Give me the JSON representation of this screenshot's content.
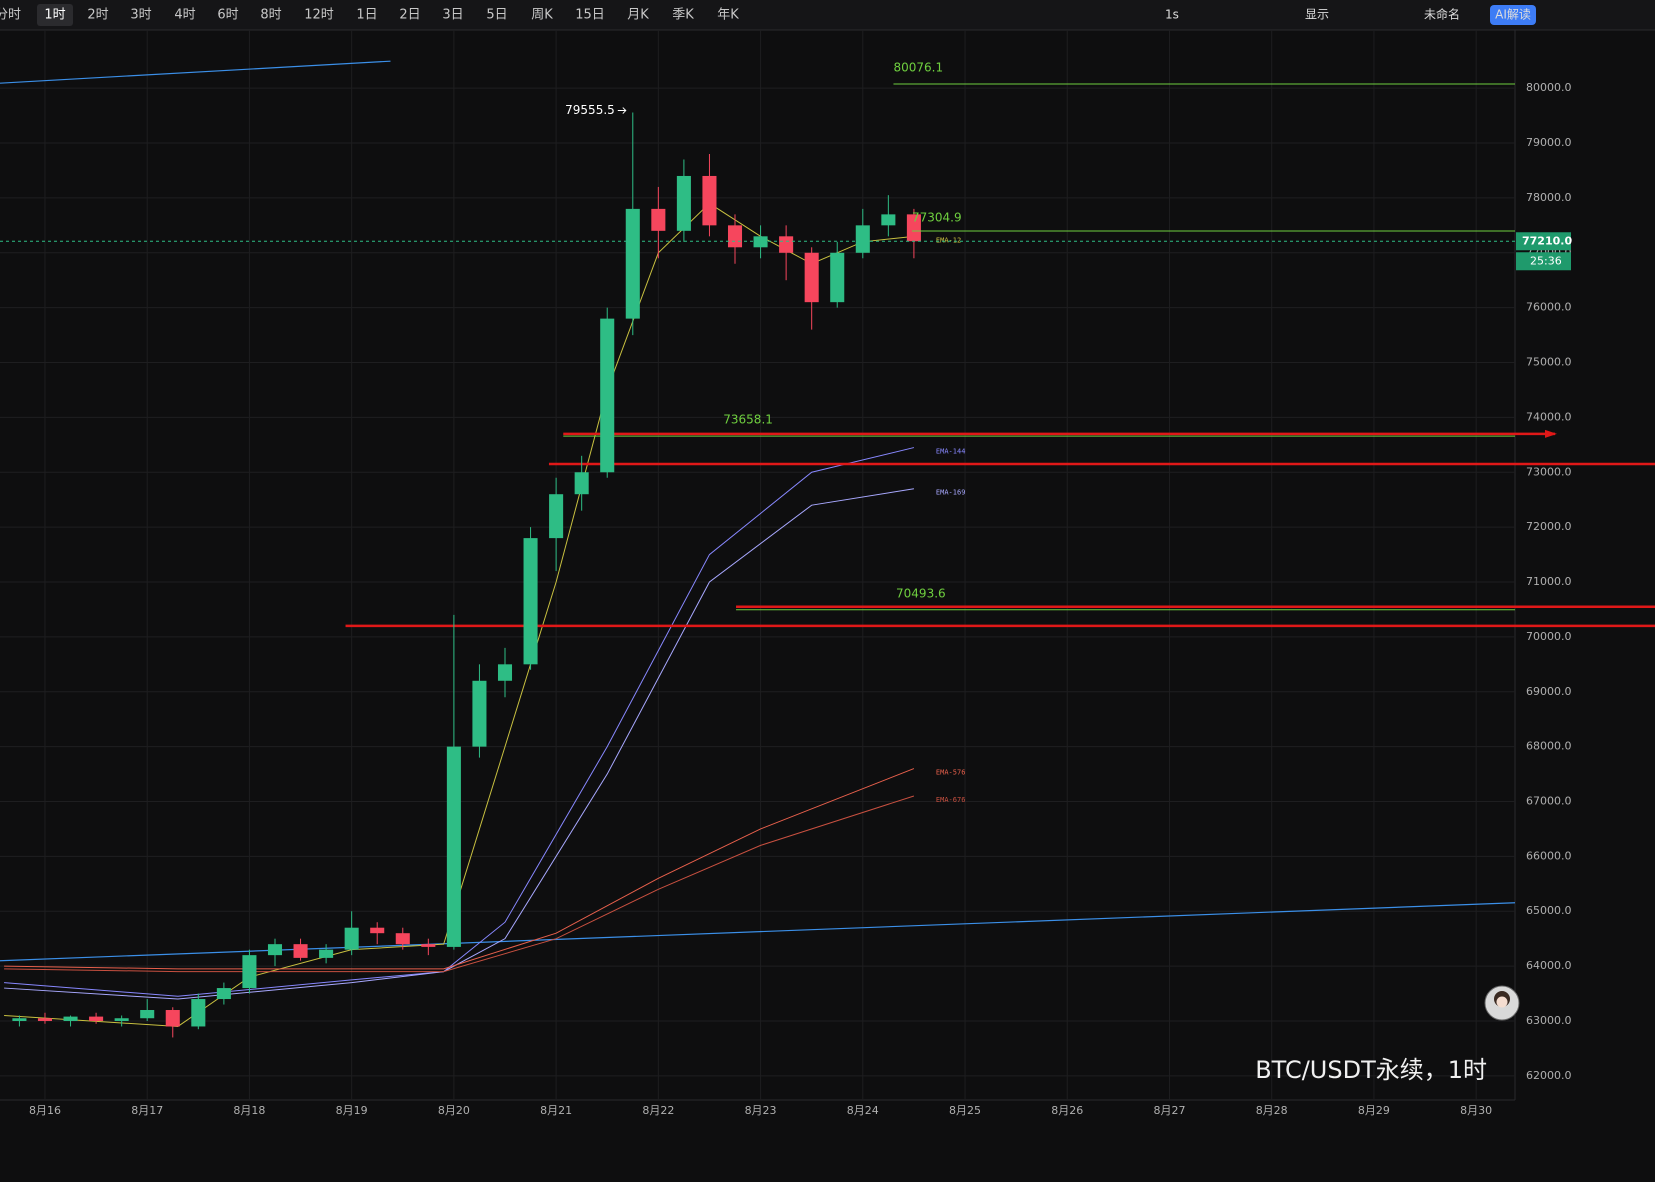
{
  "toolbar": {
    "intervals": [
      "分时",
      "1时",
      "2时",
      "3时",
      "4时",
      "6时",
      "8时",
      "12时",
      "1日",
      "2日",
      "3日",
      "5日",
      "周K",
      "15日",
      "月K",
      "季K",
      "年K"
    ],
    "active": 1,
    "tools": [
      "1s",
      "显示",
      "未命名",
      "AI解读"
    ]
  },
  "watermark": "BTC/USDT永续，1时",
  "chart_data": {
    "type": "candlestick",
    "xlim": [
      15.56,
      30.38
    ],
    "xticks": [
      {
        "value": 16,
        "label": "8月16"
      },
      {
        "value": 17,
        "label": "8月17"
      },
      {
        "value": 18,
        "label": "8月18"
      },
      {
        "value": 19,
        "label": "8月19"
      },
      {
        "value": 20,
        "label": "8月20"
      },
      {
        "value": 21,
        "label": "8月21"
      },
      {
        "value": 22,
        "label": "8月22"
      },
      {
        "value": 23,
        "label": "8月23"
      },
      {
        "value": 24,
        "label": "8月24"
      },
      {
        "value": 25,
        "label": "8月25"
      },
      {
        "value": 26,
        "label": "8月26"
      },
      {
        "value": 27,
        "label": "8月27"
      },
      {
        "value": 28,
        "label": "8月28"
      },
      {
        "value": 29,
        "label": "8月29"
      },
      {
        "value": 30,
        "label": "8月30"
      }
    ],
    "ylim": [
      61560,
      81060
    ],
    "yticks": [
      {
        "value": 62000,
        "label": "62000.0"
      },
      {
        "value": 63000,
        "label": "63000.0"
      },
      {
        "value": 64000,
        "label": "64000.0"
      },
      {
        "value": 65000,
        "label": "65000.0"
      },
      {
        "value": 66000,
        "label": "66000.0"
      },
      {
        "value": 67000,
        "label": "67000.0"
      },
      {
        "value": 68000,
        "label": "68000.0"
      },
      {
        "value": 69000,
        "label": "69000.0"
      },
      {
        "value": 70000,
        "label": "70000.0"
      },
      {
        "value": 71000,
        "label": "71000.0"
      },
      {
        "value": 72000,
        "label": "72000.0"
      },
      {
        "value": 73000,
        "label": "73000.0"
      },
      {
        "value": 74000,
        "label": "74000.0"
      },
      {
        "value": 75000,
        "label": "75000.0"
      },
      {
        "value": 76000,
        "label": "76000.0"
      },
      {
        "value": 77000,
        "label": "77000.0"
      },
      {
        "value": 78000,
        "label": "78000.0"
      },
      {
        "value": 79000,
        "label": "79000.0"
      },
      {
        "value": 80000,
        "label": "80000.0"
      }
    ],
    "grid": true,
    "up_color": "#2ebd85",
    "down_color": "#f6465d",
    "candles": {
      "x": [
        15.75,
        16,
        16.25,
        16.5,
        16.75,
        17,
        17.25,
        17.5,
        17.75,
        18,
        18.25,
        18.5,
        18.75,
        19,
        19.25,
        19.5,
        19.75,
        20,
        20.25,
        20.5,
        20.75,
        21,
        21.25,
        21.5,
        21.75,
        22,
        22.25,
        22.5,
        22.75,
        23,
        23.25,
        23.5,
        23.75,
        24,
        24.25,
        24.5
      ],
      "open": [
        63000,
        63050,
        63000,
        63080,
        63000,
        63050,
        63200,
        62900,
        63400,
        63600,
        64200,
        64400,
        64150,
        64300,
        64700,
        64600,
        64400,
        64350,
        68000,
        69200,
        69500,
        71800,
        72600,
        73000,
        75800,
        77800,
        77400,
        78400,
        77500,
        77100,
        77300,
        77000,
        76100,
        77000,
        77500,
        77700
      ],
      "high": [
        63100,
        63150,
        63100,
        63150,
        63100,
        63400,
        63250,
        63500,
        63700,
        64300,
        64500,
        64500,
        64400,
        65000,
        64800,
        64700,
        64500,
        70400,
        69500,
        69800,
        72000,
        72900,
        73300,
        76000,
        79555.5,
        78200,
        78700,
        78800,
        77700,
        77500,
        77500,
        77100,
        77200,
        77800,
        78050,
        77800
      ],
      "low": [
        62900,
        62950,
        62900,
        62950,
        62900,
        63000,
        62700,
        62850,
        63300,
        63500,
        64000,
        64100,
        64050,
        64200,
        64400,
        64300,
        64200,
        64300,
        67800,
        68900,
        69400,
        71200,
        72300,
        72900,
        75500,
        76900,
        77200,
        77300,
        76800,
        76900,
        76500,
        75600,
        76000,
        76900,
        77300,
        76900
      ],
      "close": [
        63050,
        63000,
        63080,
        63000,
        63050,
        63200,
        62900,
        63400,
        63600,
        64200,
        64400,
        64150,
        64300,
        64700,
        64600,
        64400,
        64350,
        68000,
        69200,
        69500,
        71800,
        72600,
        73000,
        75800,
        77800,
        77400,
        78400,
        77500,
        77100,
        77300,
        77000,
        76100,
        77000,
        77500,
        77700,
        77210
      ]
    },
    "emas": [
      {
        "name": "EMA-12",
        "color": "#c8c040",
        "x": [
          15.6,
          17.3,
          18,
          19,
          19.9,
          20.5,
          21,
          21.5,
          22,
          22.5,
          23,
          23.5,
          24,
          24.5
        ],
        "values": [
          63100,
          62900,
          63800,
          64300,
          64400,
          68000,
          71000,
          74500,
          77000,
          77900,
          77300,
          76800,
          77200,
          77300
        ]
      },
      {
        "name": "EMA-144",
        "color": "#8888ff",
        "x": [
          15.6,
          17.3,
          19,
          19.9,
          20.5,
          21.5,
          22.5,
          23.5,
          24.5
        ],
        "values": [
          63700,
          63450,
          63750,
          63900,
          64800,
          68000,
          71500,
          73000,
          73450
        ]
      },
      {
        "name": "EMA-169",
        "color": "#a8a8ff",
        "x": [
          15.6,
          17.3,
          19,
          19.9,
          20.5,
          21.5,
          22.5,
          23.5,
          24.5
        ],
        "values": [
          63600,
          63400,
          63700,
          63900,
          64500,
          67500,
          71000,
          72400,
          72700
        ]
      },
      {
        "name": "EMA-576",
        "color": "#e8604c",
        "x": [
          15.6,
          17.3,
          19.9,
          21,
          22,
          23,
          24.5
        ],
        "values": [
          64000,
          63950,
          63950,
          64600,
          65600,
          66500,
          67600
        ]
      },
      {
        "name": "EMA-676",
        "color": "#c85040",
        "x": [
          15.6,
          17.3,
          19.9,
          21,
          22,
          23,
          24.5
        ],
        "values": [
          63950,
          63900,
          63900,
          64500,
          65400,
          66200,
          67100
        ]
      }
    ],
    "levels": [
      {
        "value": 80076.1,
        "from": 24.3,
        "color": "#6fcf3f"
      },
      {
        "value": 73658.1,
        "from": 21.07,
        "color": "#6fcf3f"
      },
      {
        "value": 70493.6,
        "from": 22.76,
        "color": "#6fcf3f"
      }
    ],
    "red_lines": [
      {
        "value": 73700,
        "from": 21.07
      },
      {
        "value": 73150,
        "from": 20.93
      },
      {
        "value": 70550,
        "from": 22.76
      },
      {
        "value": 70200,
        "from": 18.94
      }
    ],
    "trendlines": [
      {
        "color": "#3b8fe8",
        "x": [
          15.56,
          19.38
        ],
        "values": [
          80091,
          80492
        ]
      },
      {
        "color": "#3b8fe8",
        "x": [
          15.56,
          30.38
        ],
        "values": [
          64098,
          65155
        ]
      }
    ],
    "high_label": {
      "value": 79555.5
    },
    "marker": {
      "value": 77304.9
    },
    "last_price": {
      "value": 77210,
      "label": "77210.0"
    },
    "countdown": "25:36"
  }
}
